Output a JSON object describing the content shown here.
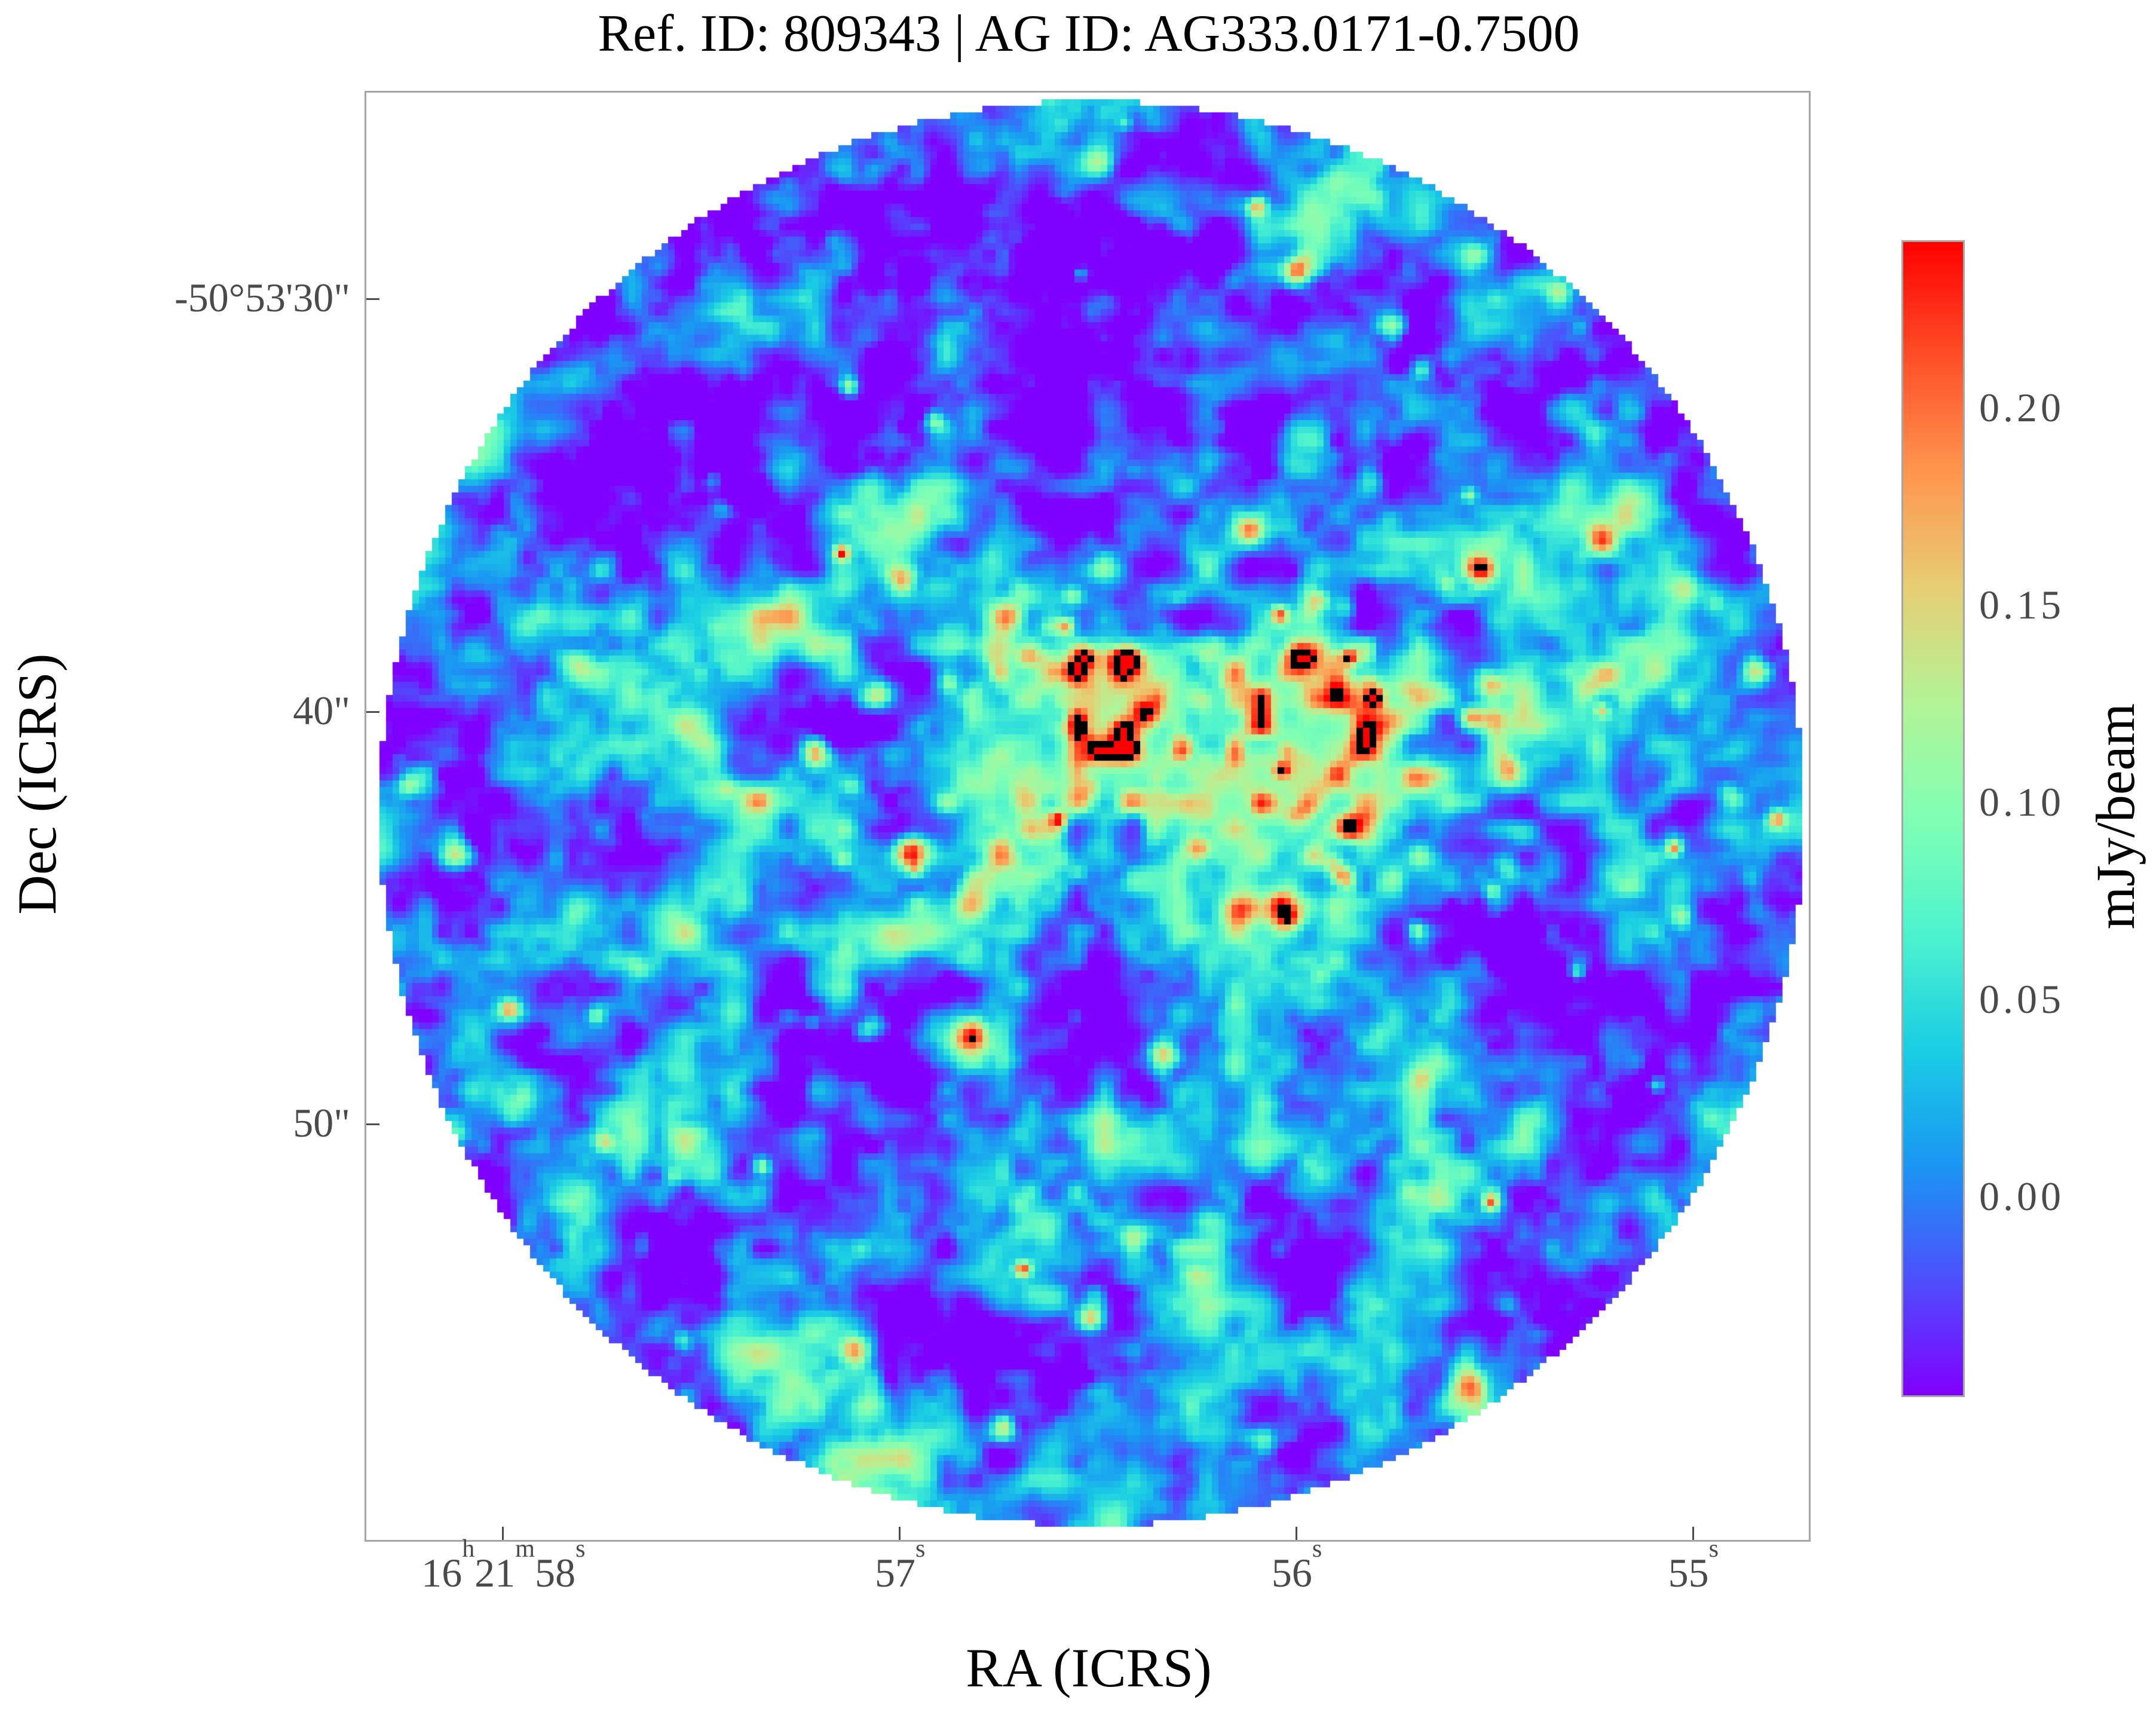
{
  "title": "Ref. ID: 809343 | AG ID: AG333.0171-0.7500",
  "x_axis": {
    "label": "RA (ICRS)",
    "ticks": [
      {
        "label": "16h21m58s",
        "pos": 0.095
      },
      {
        "label": "57s",
        "pos": 0.37
      },
      {
        "label": "56s",
        "pos": 0.645
      },
      {
        "label": "55s",
        "pos": 0.92
      }
    ]
  },
  "y_axis": {
    "label": "Dec (ICRS)",
    "ticks": [
      {
        "label": "-50°53'30\"",
        "pos": 0.143
      },
      {
        "label": "40\"",
        "pos": 0.428
      },
      {
        "label": "50\"",
        "pos": 0.713
      }
    ]
  },
  "colorbar": {
    "label": "mJy/beam",
    "tick_values": [
      0.2,
      0.15,
      0.1,
      0.05,
      0.0
    ],
    "vmin": -0.05,
    "vmax": 0.2425
  },
  "colors": {
    "frame": "#a6a6a6",
    "tick_text": "#4a4a4a",
    "text": "#000000",
    "background": "#ffffff",
    "contour": "#000000"
  },
  "chart_data": {
    "type": "heatmap",
    "title": "Ref. ID: 809343 | AG ID: AG333.0171-0.7500",
    "xlabel": "RA (ICRS)",
    "ylabel": "Dec (ICRS)",
    "x_tick_labels": [
      "16h21m58s",
      "57s",
      "56s",
      "55s"
    ],
    "y_tick_labels": [
      "-50°53'30\"",
      "40\"",
      "50\""
    ],
    "colorbar_label": "mJy/beam",
    "colorbar_tick_values": [
      0.2,
      0.15,
      0.1,
      0.05,
      0.0
    ],
    "value_range_mjy_per_beam": [
      -0.05,
      0.2425
    ],
    "colormap": "rainbow",
    "colormap_stops": [
      [
        0.0,
        "#8000ff"
      ],
      [
        0.1,
        "#4d4ffc"
      ],
      [
        0.2,
        "#1a96f3"
      ],
      [
        0.3,
        "#1acee3"
      ],
      [
        0.4,
        "#4df3ce"
      ],
      [
        0.5,
        "#80ffb4"
      ],
      [
        0.6,
        "#b3f396"
      ],
      [
        0.7,
        "#e6ce74"
      ],
      [
        0.8,
        "#ff964f"
      ],
      [
        0.9,
        "#ff4f28"
      ],
      [
        1.0,
        "#ff0000"
      ]
    ],
    "field_description": "Circular interferometric image cutout: correlated blue/purple noise background (rms ~0.035 mJy/beam) with cyan-green speckle, an extended bright orange-red emission band slightly above and right of field center, scattered compact bright peaks, and thin black contours ringing the brightest (~0.24 mJy/beam) peaks. White outside the circular field of view.",
    "field": {
      "grid": [
        220,
        221
      ],
      "circle": {
        "cx": 0.503,
        "cy": 0.498,
        "r": 0.494
      },
      "noise": {
        "seed": 1337,
        "mean": 0.004,
        "scale": 0.075,
        "octaves": [
          {
            "period": 16,
            "amp": 1.0
          },
          {
            "period": 8,
            "amp": 0.75
          },
          {
            "period": 4,
            "amp": 0.55
          },
          {
            "period": 2.2,
            "amp": 0.3
          }
        ]
      },
      "speckles": {
        "count": 85,
        "amp_min": 0.05,
        "amp_max": 0.2,
        "sig_min": 0.8,
        "sig_max": 2.0
      },
      "band_speckles": {
        "count": 48,
        "amp_min": 0.07,
        "amp_max": 0.2,
        "sig_min": 0.8,
        "sig_max": 1.8
      },
      "hotspots": [
        {
          "cx": 0.6,
          "cy": 0.435,
          "sx": 0.155,
          "sy": 0.05,
          "amp": 0.07,
          "rot": 4,
          "boost": 0.1
        },
        {
          "cx": 0.5,
          "cy": 0.42,
          "sx": 0.06,
          "sy": 0.045,
          "amp": 0.05,
          "rot": 0,
          "boost": 0.05
        },
        {
          "cx": 0.66,
          "cy": 0.4,
          "sx": 0.05,
          "sy": 0.035,
          "amp": 0.06,
          "rot": 0,
          "boost": 0.06
        },
        {
          "cx": 0.57,
          "cy": 0.505,
          "sx": 0.08,
          "sy": 0.04,
          "amp": 0.045,
          "rot": 0,
          "boost": 0.05
        },
        {
          "cx": 0.44,
          "cy": 0.52,
          "sx": 0.05,
          "sy": 0.04,
          "amp": 0.035,
          "rot": 0,
          "boost": 0.03
        }
      ],
      "contour_level": 0.2425
    }
  }
}
